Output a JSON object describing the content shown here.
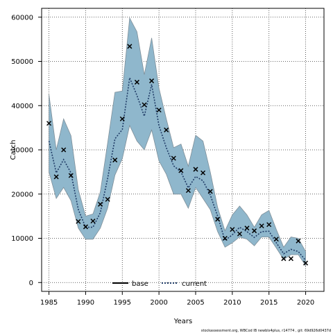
{
  "chart_data": {
    "type": "line",
    "xlabel": "Years",
    "ylabel": "Catch",
    "xlim": [
      1984,
      2022.5
    ],
    "ylim": [
      -2000,
      62000
    ],
    "x_ticks": [
      1985,
      1990,
      1995,
      2000,
      2005,
      2010,
      2015,
      2020
    ],
    "y_ticks": [
      0,
      10000,
      20000,
      30000,
      40000,
      50000,
      60000
    ],
    "x_tick_labels": [
      "1985",
      "1990",
      "1995",
      "2000",
      "2005",
      "2010",
      "2015",
      "2020"
    ],
    "y_tick_labels": [
      "0",
      "10000",
      "20000",
      "30000",
      "40000",
      "50000",
      "60000"
    ],
    "grid": true,
    "legend_position": "bottom-center",
    "colors": {
      "band": "#8fb7cc",
      "band_edge": "#7f8f99",
      "current_line": "#1f3b66",
      "base_line": "#000000",
      "points": "#000000"
    },
    "legend": [
      {
        "label": "base",
        "style": "solid"
      },
      {
        "label": "current",
        "style": "dotted"
      }
    ],
    "observed_catch": {
      "x": [
        1985,
        1986,
        1987,
        1988,
        1989,
        1990,
        1991,
        1992,
        1993,
        1994,
        1995,
        1996,
        1997,
        1998,
        1999,
        2000,
        2001,
        2002,
        2003,
        2004,
        2005,
        2006,
        2007,
        2008,
        2009,
        2010,
        2011,
        2012,
        2013,
        2014,
        2015,
        2016,
        2017,
        2018,
        2019,
        2020
      ],
      "y": [
        36000,
        23900,
        30000,
        24200,
        13800,
        12600,
        13900,
        17700,
        18800,
        27700,
        37000,
        53400,
        45300,
        40200,
        45600,
        39000,
        34500,
        28100,
        25300,
        20800,
        25600,
        24800,
        20600,
        14300,
        10000,
        12000,
        11000,
        12300,
        11700,
        12800,
        13100,
        9800,
        5400,
        5400,
        9400,
        4400
      ]
    },
    "current_fit": {
      "x": [
        1985,
        1986,
        1987,
        1988,
        1989,
        1990,
        1991,
        1992,
        1993,
        1994,
        1995,
        1996,
        1997,
        1998,
        1999,
        2000,
        2001,
        2002,
        2003,
        2004,
        2005,
        2006,
        2007,
        2008,
        2009,
        2010,
        2011,
        2012,
        2013,
        2014,
        2015,
        2016,
        2017,
        2018,
        2019,
        2020
      ],
      "y": [
        32000,
        24800,
        27800,
        24800,
        16500,
        12500,
        12500,
        15800,
        23500,
        32500,
        34600,
        46300,
        42300,
        37600,
        44800,
        35500,
        30500,
        26400,
        25000,
        21400,
        24000,
        23000,
        19800,
        15000,
        9500,
        10800,
        12500,
        11500,
        10200,
        11500,
        11600,
        9000,
        6500,
        7500,
        7000,
        5000
      ]
    },
    "confidence_band": {
      "x": [
        1985,
        1986,
        1987,
        1988,
        1989,
        1990,
        1991,
        1992,
        1993,
        1994,
        1995,
        1996,
        1997,
        1998,
        1999,
        2000,
        2001,
        2002,
        2003,
        2004,
        2005,
        2006,
        2007,
        2008,
        2009,
        2010,
        2011,
        2012,
        2013,
        2014,
        2015,
        2016,
        2017,
        2018,
        2019,
        2020
      ],
      "upper": [
        42500,
        30000,
        37000,
        33200,
        21000,
        15000,
        15500,
        20500,
        31500,
        43000,
        43300,
        59800,
        56700,
        47000,
        55300,
        44000,
        37000,
        30500,
        31300,
        26300,
        33300,
        32000,
        25000,
        17000,
        11700,
        15300,
        17300,
        15300,
        12500,
        15300,
        16300,
        12000,
        8000,
        10300,
        10000,
        7000
      ],
      "lower": [
        25000,
        19000,
        21500,
        18500,
        12300,
        9800,
        9800,
        12300,
        16800,
        24300,
        28000,
        35500,
        32000,
        30000,
        34500,
        27500,
        24500,
        20000,
        20000,
        16800,
        21500,
        19000,
        16500,
        11500,
        8000,
        9000,
        10300,
        9800,
        8300,
        10300,
        10300,
        7800,
        5200,
        6300,
        6300,
        3800
      ]
    }
  },
  "footer_text": "stockassessment.org, WBCod IB newblx4plus, r14774 , git: 69d926d0437d"
}
